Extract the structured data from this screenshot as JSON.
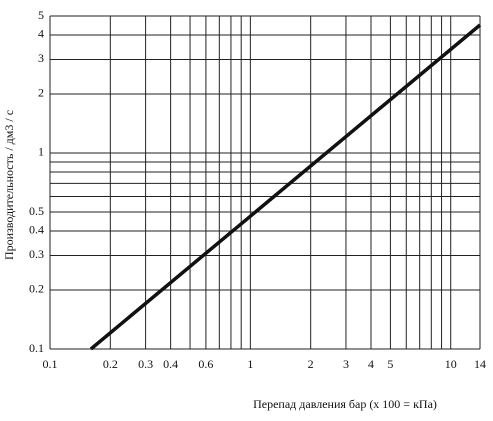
{
  "chart_data": {
    "type": "line",
    "x_label": "Перепад давления  бар (x 100 = кПа)",
    "y_label": "Производительность / дм3 / с",
    "log_x": true,
    "log_y": true,
    "grid": true,
    "xlim": [
      0.1,
      14
    ],
    "ylim": [
      0.1,
      5
    ],
    "xticks": [
      0.1,
      0.2,
      0.3,
      0.4,
      0.6,
      1,
      2,
      3,
      4,
      5,
      10,
      14
    ],
    "yticks": [
      0.1,
      0.2,
      0.3,
      0.4,
      0.5,
      1,
      2,
      3,
      4,
      5
    ],
    "xgrid": [
      0.1,
      0.2,
      0.3,
      0.4,
      0.5,
      0.6,
      0.7,
      0.8,
      0.9,
      1,
      2,
      3,
      4,
      5,
      6,
      7,
      8,
      9,
      10,
      14
    ],
    "ygrid": [
      0.1,
      0.2,
      0.3,
      0.4,
      0.5,
      0.6,
      0.7,
      0.8,
      0.9,
      1,
      2,
      3,
      4,
      5
    ],
    "x": [
      0.16,
      14
    ],
    "series": [
      {
        "color": "#111111",
        "values": [
          0.1,
          4.5
        ]
      }
    ]
  }
}
